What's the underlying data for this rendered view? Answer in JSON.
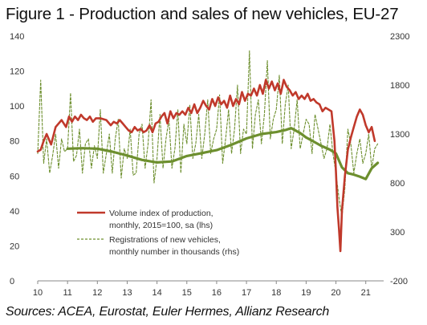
{
  "chart_data": {
    "type": "line",
    "title": "Figure 1 - Production and sales of new vehicles, EU-27",
    "xlabel": "",
    "ylabel_left": "",
    "ylabel_right": "",
    "source": "Sources: ACEA, Eurostat, Euler Hermes, Allianz Research",
    "x_tick_labels": [
      "10",
      "11",
      "12",
      "13",
      "14",
      "15",
      "16",
      "17",
      "18",
      "19",
      "20",
      "21"
    ],
    "x_range": [
      10,
      21.6
    ],
    "y_left": {
      "ticks": [
        "0",
        "20",
        "40",
        "60",
        "80",
        "100",
        "120",
        "140"
      ],
      "ylim": [
        0,
        140
      ]
    },
    "y_right": {
      "ticks": [
        "-200",
        "300",
        "800",
        "1300",
        "1800",
        "2300"
      ],
      "ylim": [
        -200,
        2300
      ]
    },
    "grid": false,
    "legend_position": "center-left",
    "colors": {
      "production": "#c0392b",
      "registrations": "#6d8f2e",
      "trend": "#6d8f2e"
    },
    "series": [
      {
        "name": "Volume index of production, monthly, 2015=100, sa (lhs)",
        "label_lines": [
          "Volume index of production,",
          "monthly, 2015=100, sa (lhs)"
        ],
        "axis": "left",
        "style": "solid",
        "x": [
          10.0,
          10.1,
          10.2,
          10.3,
          10.45,
          10.6,
          10.8,
          10.95,
          11.05,
          11.15,
          11.25,
          11.35,
          11.45,
          11.55,
          11.65,
          11.75,
          11.85,
          11.95,
          12.1,
          12.3,
          12.45,
          12.55,
          12.65,
          12.75,
          12.85,
          12.95,
          13.05,
          13.15,
          13.25,
          13.35,
          13.45,
          13.55,
          13.65,
          13.75,
          13.85,
          13.95,
          14.05,
          14.15,
          14.25,
          14.35,
          14.45,
          14.55,
          14.65,
          14.75,
          14.85,
          14.95,
          15.05,
          15.15,
          15.25,
          15.35,
          15.45,
          15.55,
          15.65,
          15.75,
          15.85,
          15.95,
          16.05,
          16.15,
          16.25,
          16.35,
          16.45,
          16.55,
          16.65,
          16.75,
          16.85,
          16.95,
          17.05,
          17.15,
          17.25,
          17.35,
          17.45,
          17.55,
          17.65,
          17.75,
          17.85,
          17.95,
          18.05,
          18.15,
          18.25,
          18.35,
          18.45,
          18.55,
          18.65,
          18.75,
          18.85,
          18.95,
          19.05,
          19.15,
          19.25,
          19.35,
          19.45,
          19.55,
          19.65,
          19.75,
          19.85,
          19.95,
          20.0,
          20.05,
          20.1,
          20.15,
          20.2,
          20.3,
          20.4,
          20.5,
          20.6,
          20.7,
          20.8,
          20.9,
          21.0,
          21.1,
          21.2,
          21.3
        ],
        "values": [
          74,
          75,
          80,
          84,
          78,
          88,
          92,
          88,
          94,
          91,
          94,
          92,
          95,
          93,
          92,
          94,
          91,
          93,
          93,
          92,
          89,
          91,
          90,
          92,
          90,
          88,
          86,
          85,
          88,
          86,
          87,
          85,
          86,
          89,
          85,
          90,
          91,
          94,
          96,
          90,
          97,
          93,
          96,
          95,
          97,
          95,
          99,
          96,
          101,
          96,
          99,
          103,
          100,
          98,
          104,
          100,
          105,
          101,
          103,
          99,
          106,
          100,
          104,
          101,
          108,
          103,
          107,
          106,
          110,
          106,
          112,
          107,
          115,
          110,
          114,
          109,
          113,
          107,
          115,
          111,
          109,
          106,
          108,
          104,
          106,
          104,
          107,
          103,
          104,
          102,
          101,
          97,
          99,
          98,
          97,
          80,
          62,
          42,
          30,
          17,
          40,
          60,
          75,
          82,
          88,
          94,
          98,
          95,
          89,
          85,
          88,
          80
        ]
      },
      {
        "name": "Registrations of new vehicles, monthly number in thousands (rhs)",
        "label_lines": [
          "Registrations of new vehicles,",
          "monthly number in thousands (rhs)"
        ],
        "axis": "right",
        "style": "dashed",
        "x": [
          10.0,
          10.1,
          10.2,
          10.3,
          10.4,
          10.5,
          10.6,
          10.7,
          10.8,
          10.9,
          11.0,
          11.1,
          11.2,
          11.3,
          11.4,
          11.5,
          11.6,
          11.7,
          11.8,
          11.9,
          12.0,
          12.1,
          12.2,
          12.3,
          12.4,
          12.5,
          12.6,
          12.7,
          12.8,
          12.9,
          13.0,
          13.1,
          13.2,
          13.3,
          13.4,
          13.5,
          13.6,
          13.7,
          13.8,
          13.9,
          14.0,
          14.1,
          14.2,
          14.3,
          14.4,
          14.5,
          14.6,
          14.7,
          14.8,
          14.9,
          15.0,
          15.1,
          15.2,
          15.3,
          15.4,
          15.5,
          15.6,
          15.7,
          15.8,
          15.9,
          16.0,
          16.1,
          16.2,
          16.3,
          16.4,
          16.5,
          16.6,
          16.7,
          16.8,
          16.9,
          17.0,
          17.1,
          17.2,
          17.3,
          17.4,
          17.5,
          17.6,
          17.7,
          17.8,
          17.9,
          18.0,
          18.1,
          18.2,
          18.3,
          18.4,
          18.5,
          18.6,
          18.7,
          18.8,
          18.9,
          19.0,
          19.1,
          19.2,
          19.3,
          19.4,
          19.5,
          19.6,
          19.7,
          19.8,
          19.9,
          20.0,
          20.1,
          20.2,
          20.3,
          20.4,
          20.5,
          20.6,
          20.7,
          20.8,
          20.9,
          21.0,
          21.1,
          21.2,
          21.3,
          21.4
        ],
        "values": [
          1100,
          1850,
          1000,
          1250,
          900,
          1080,
          1300,
          950,
          1250,
          1120,
          1150,
          1720,
          1020,
          1080,
          1350,
          900,
          1200,
          1250,
          950,
          1180,
          1050,
          1550,
          900,
          1100,
          1300,
          900,
          1250,
          1450,
          850,
          1150,
          1050,
          1350,
          880,
          900,
          1300,
          1400,
          950,
          1200,
          1650,
          800,
          1050,
          1500,
          950,
          1250,
          1450,
          950,
          1150,
          1550,
          900,
          1400,
          1200,
          1600,
          1050,
          1200,
          1500,
          1050,
          1300,
          1650,
          1100,
          1250,
          1350,
          1700,
          1000,
          1250,
          1550,
          1100,
          1350,
          1800,
          1100,
          1350,
          1300,
          2150,
          1150,
          1500,
          1650,
          1200,
          1500,
          2050,
          1250,
          1450,
          1550,
          1900,
          1200,
          1600,
          1800,
          1150,
          1350,
          1650,
          1150,
          1300,
          1450,
          1400,
          1100,
          1500,
          1350,
          1200,
          1050,
          1150,
          1400,
          1100,
          900,
          650,
          450,
          750,
          1350,
          1200,
          900,
          1100,
          1250,
          1000,
          1100,
          1300,
          950,
          1150,
          1200
        ]
      },
      {
        "name": "",
        "axis": "right",
        "style": "solid-thick",
        "x": [
          11.0,
          11.5,
          12.0,
          12.5,
          13.0,
          13.5,
          14.0,
          14.5,
          15.0,
          15.5,
          16.0,
          16.5,
          17.0,
          17.5,
          18.0,
          18.3,
          18.5,
          18.8,
          19.0,
          19.3,
          19.5,
          19.8,
          20.0,
          20.2,
          20.4,
          20.6,
          20.8,
          21.0,
          21.2,
          21.4
        ],
        "values": [
          1150,
          1155,
          1150,
          1120,
          1080,
          1035,
          1010,
          1020,
          1075,
          1105,
          1135,
          1190,
          1255,
          1300,
          1320,
          1340,
          1360,
          1310,
          1265,
          1215,
          1180,
          1140,
          1100,
          960,
          900,
          885,
          865,
          840,
          950,
          1005
        ]
      }
    ]
  }
}
